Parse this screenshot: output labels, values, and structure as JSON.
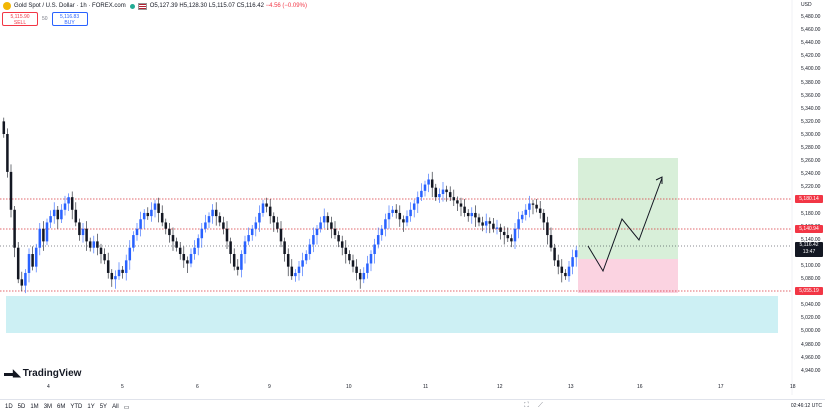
{
  "header": {
    "title": "Gold Spot / U.S. Dollar · 1h · FOREX.com",
    "ohlc": "O5,127.39 H5,128.30 L5,115.07 C5,116.42",
    "change": "−4.56 (−0.09%)"
  },
  "trade": {
    "sell_price": "5,115.90",
    "sell_label": "SELL",
    "spread": "50",
    "buy_price": "5,116.83",
    "buy_label": "BUY"
  },
  "price_axis": {
    "currency": "USD",
    "ticks": [
      "5,480.00",
      "5,460.00",
      "5,440.00",
      "5,420.00",
      "5,400.00",
      "5,380.00",
      "5,360.00",
      "5,340.00",
      "5,320.00",
      "5,300.00",
      "5,280.00",
      "5,260.00",
      "5,240.00",
      "5,220.00",
      "5,200.00",
      "5,180.00",
      "5,160.00",
      "5,140.00",
      "5,120.00",
      "5,100.00",
      "5,080.00",
      "5,060.00",
      "5,040.00",
      "5,020.00",
      "5,000.00",
      "4,980.00",
      "4,960.00",
      "4,940.00"
    ],
    "badge_upper": "5,180.14",
    "badge_mid": "5,140.94",
    "badge_price": "5,116.42",
    "badge_countdown": "13:47",
    "badge_lower": "5,055.19"
  },
  "time_axis": {
    "ticks": [
      "4",
      "5",
      "6",
      "9",
      "10",
      "11",
      "12",
      "13",
      "16",
      "17",
      "18"
    ]
  },
  "logo_text": "TradingView",
  "bottom": {
    "ranges": [
      "1D",
      "5D",
      "1M",
      "3M",
      "6M",
      "YTD",
      "1Y",
      "5Y",
      "All"
    ],
    "clock": "02:46:12 UTC"
  },
  "colors": {
    "up": "#2962ff",
    "down": "#131722",
    "target_zone": "#d8efd9",
    "stop_zone": "#fbd3e1",
    "demand_zone": "#cdf0f4",
    "level_line": "#d9363e"
  },
  "chart_data": {
    "type": "candlestick",
    "ylim": [
      4930,
      5490
    ],
    "closes": [
      5300,
      5240,
      5180,
      5120,
      5070,
      5060,
      5080,
      5110,
      5090,
      5120,
      5150,
      5130,
      5160,
      5170,
      5180,
      5165,
      5180,
      5190,
      5200,
      5180,
      5160,
      5140,
      5150,
      5130,
      5120,
      5130,
      5120,
      5110,
      5100,
      5080,
      5070,
      5075,
      5085,
      5080,
      5100,
      5120,
      5140,
      5150,
      5165,
      5175,
      5170,
      5180,
      5190,
      5175,
      5160,
      5150,
      5140,
      5130,
      5120,
      5110,
      5100,
      5095,
      5110,
      5120,
      5135,
      5150,
      5160,
      5170,
      5180,
      5170,
      5160,
      5150,
      5130,
      5110,
      5090,
      5085,
      5110,
      5130,
      5140,
      5150,
      5160,
      5175,
      5190,
      5185,
      5170,
      5160,
      5150,
      5130,
      5110,
      5090,
      5075,
      5080,
      5090,
      5100,
      5110,
      5125,
      5140,
      5150,
      5160,
      5170,
      5160,
      5150,
      5140,
      5130,
      5120,
      5110,
      5100,
      5090,
      5080,
      5070,
      5080,
      5095,
      5110,
      5125,
      5140,
      5150,
      5165,
      5175,
      5180,
      5175,
      5165,
      5160,
      5170,
      5180,
      5190,
      5200,
      5210,
      5220,
      5228,
      5215,
      5200,
      5205,
      5212,
      5208,
      5200,
      5195,
      5190,
      5185,
      5175,
      5170,
      5175,
      5168,
      5160,
      5155,
      5162,
      5158,
      5150,
      5152,
      5145,
      5140,
      5135,
      5130,
      5150,
      5165,
      5172,
      5180,
      5190,
      5188,
      5182,
      5175,
      5160,
      5140,
      5120,
      5100,
      5090,
      5080,
      5075,
      5090,
      5105,
      5116
    ]
  }
}
